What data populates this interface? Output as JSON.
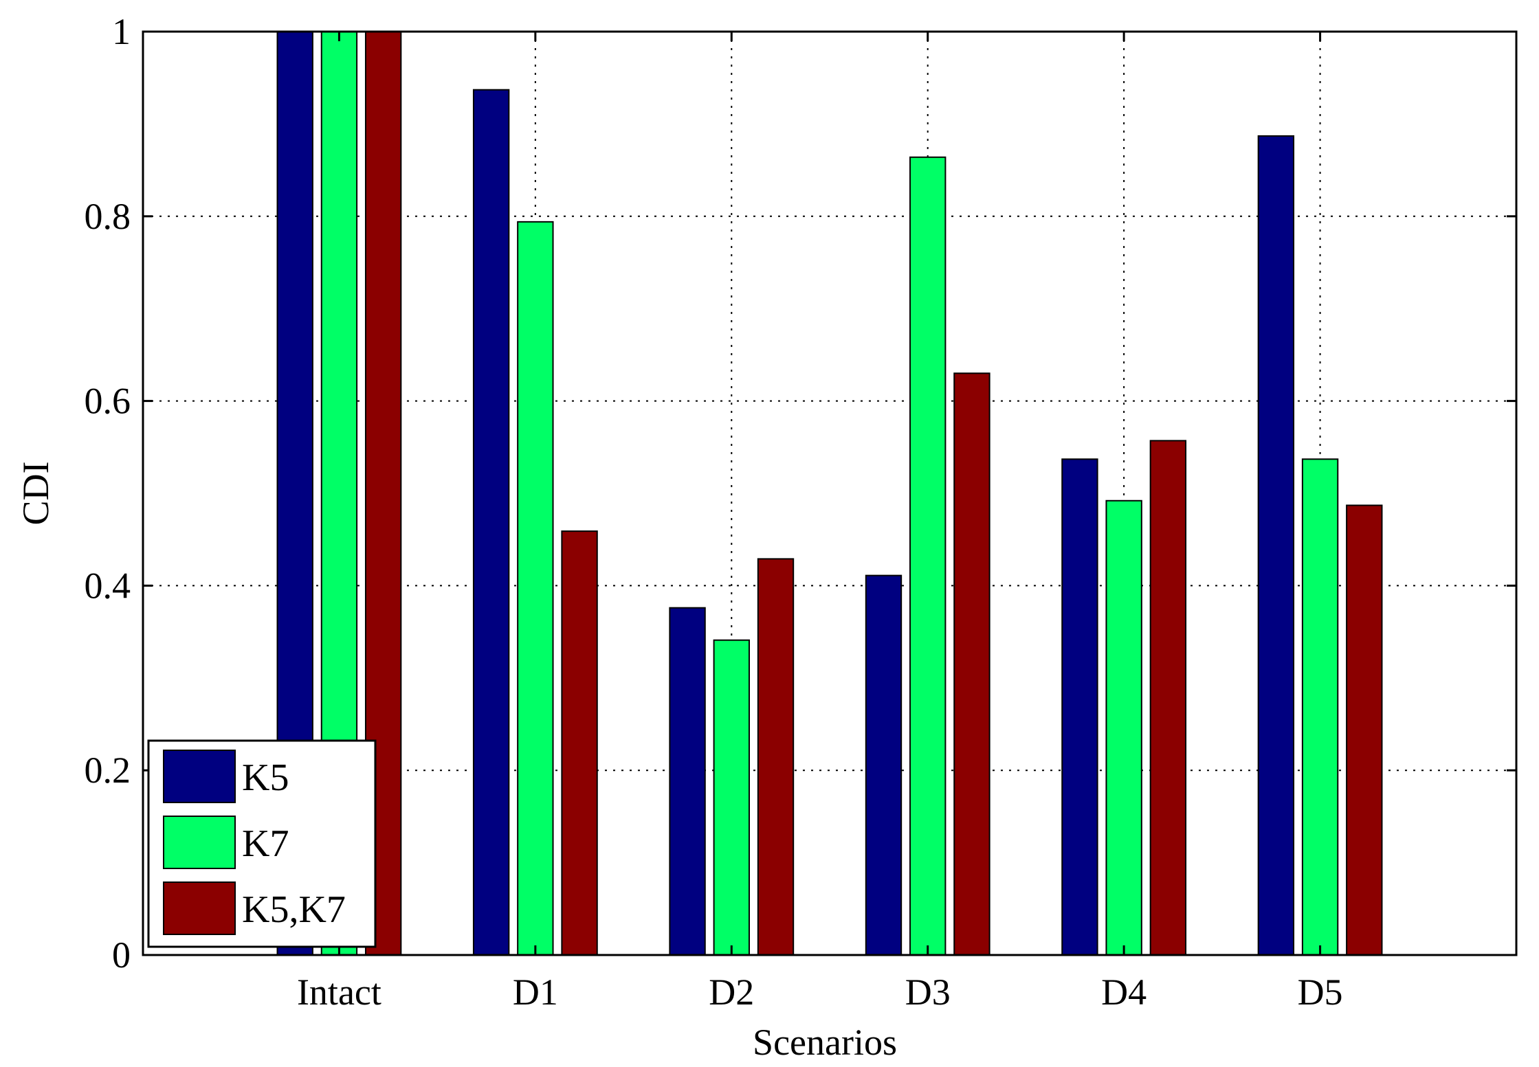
{
  "chart_data": {
    "type": "bar",
    "title": "",
    "xlabel": "Scenarios",
    "ylabel": "CDI",
    "categories": [
      "Intact",
      "D1",
      "D2",
      "D3",
      "D4",
      "D5"
    ],
    "series": [
      {
        "name": "K5",
        "color": "#000080",
        "values": [
          1.0,
          0.937,
          0.376,
          0.411,
          0.537,
          0.887
        ]
      },
      {
        "name": "K7",
        "color": "#00ff66",
        "values": [
          1.0,
          0.794,
          0.341,
          0.864,
          0.492,
          0.537
        ]
      },
      {
        "name": "K5,K7",
        "color": "#8b0000",
        "values": [
          1.0,
          0.459,
          0.429,
          0.63,
          0.557,
          0.487
        ]
      }
    ],
    "ylim": [
      0,
      1
    ],
    "xlim": [
      0,
      7
    ],
    "yticks": [
      0,
      0.2,
      0.4,
      0.6,
      0.8,
      1
    ],
    "ytick_labels": [
      "0",
      "0.2",
      "0.4",
      "0.6",
      "0.8",
      "1"
    ],
    "grid": true,
    "legend_position": "bottom-left"
  }
}
